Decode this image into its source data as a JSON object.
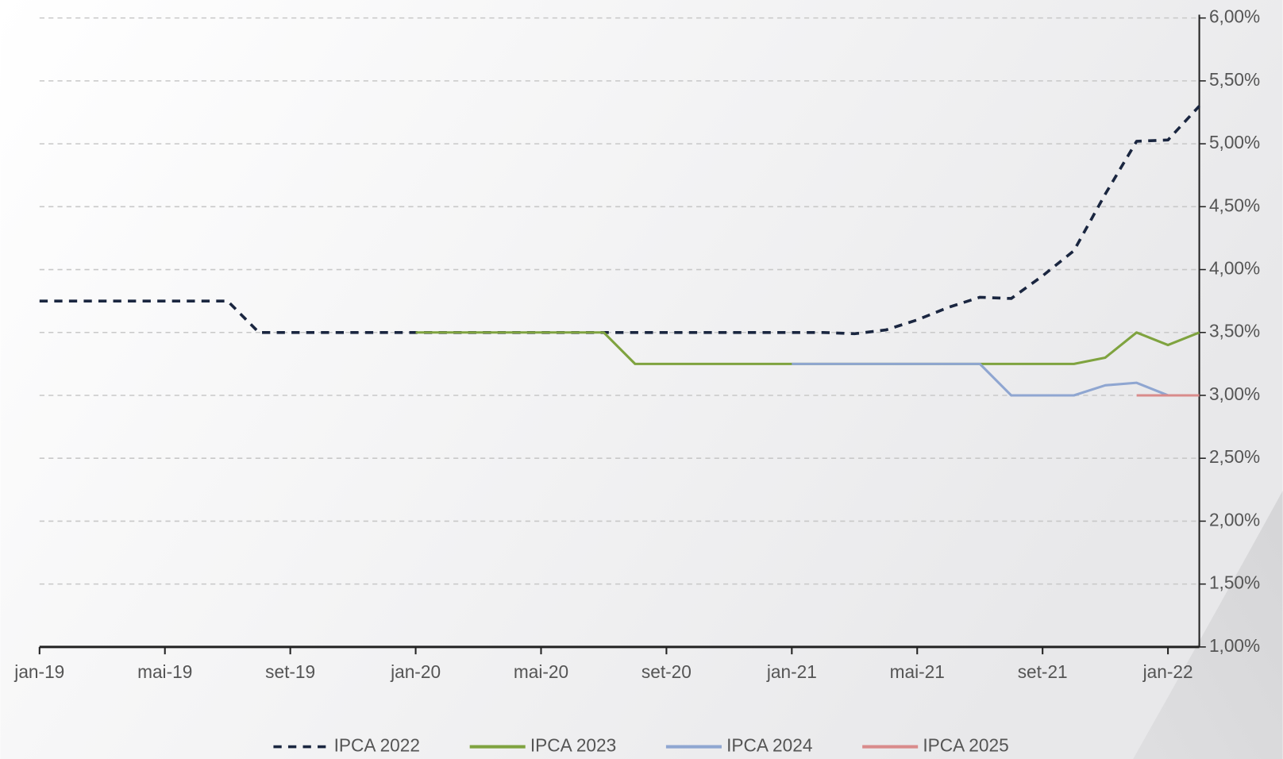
{
  "chart_data": {
    "type": "line",
    "x": [
      "2019-01",
      "2019-02",
      "2019-03",
      "2019-04",
      "2019-05",
      "2019-06",
      "2019-07",
      "2019-08",
      "2019-09",
      "2019-10",
      "2019-11",
      "2019-12",
      "2020-01",
      "2020-02",
      "2020-03",
      "2020-04",
      "2020-05",
      "2020-06",
      "2020-07",
      "2020-08",
      "2020-09",
      "2020-10",
      "2020-11",
      "2020-12",
      "2021-01",
      "2021-02",
      "2021-03",
      "2021-04",
      "2021-05",
      "2021-06",
      "2021-07",
      "2021-08",
      "2021-09",
      "2021-10",
      "2021-11",
      "2021-12",
      "2022-01",
      "2022-02"
    ],
    "series": [
      {
        "name": "IPCA 2022",
        "color": "#1a2640",
        "line_style": "dashed",
        "values": [
          3.75,
          3.75,
          3.75,
          3.75,
          3.75,
          3.75,
          3.75,
          3.5,
          3.5,
          3.5,
          3.5,
          3.5,
          3.5,
          3.5,
          3.5,
          3.5,
          3.5,
          3.5,
          3.5,
          3.5,
          3.5,
          3.5,
          3.5,
          3.5,
          3.5,
          3.5,
          3.49,
          3.52,
          3.6,
          3.7,
          3.78,
          3.77,
          3.95,
          4.15,
          4.6,
          5.02,
          5.03,
          5.3
        ]
      },
      {
        "name": "IPCA 2023",
        "color": "#7fa33f",
        "line_style": "solid",
        "values": [
          null,
          null,
          null,
          null,
          null,
          null,
          null,
          null,
          null,
          null,
          null,
          null,
          3.5,
          3.5,
          3.5,
          3.5,
          3.5,
          3.5,
          3.5,
          3.25,
          3.25,
          3.25,
          3.25,
          3.25,
          3.25,
          3.25,
          3.25,
          3.25,
          3.25,
          3.25,
          3.25,
          3.25,
          3.25,
          3.25,
          3.3,
          3.5,
          3.4,
          3.5
        ]
      },
      {
        "name": "IPCA 2024",
        "color": "#8fa6d1",
        "line_style": "solid",
        "values": [
          null,
          null,
          null,
          null,
          null,
          null,
          null,
          null,
          null,
          null,
          null,
          null,
          null,
          null,
          null,
          null,
          null,
          null,
          null,
          null,
          null,
          null,
          null,
          null,
          3.25,
          3.25,
          3.25,
          3.25,
          3.25,
          3.25,
          3.25,
          3.0,
          3.0,
          3.0,
          3.08,
          3.1,
          3.0,
          3.0
        ]
      },
      {
        "name": "IPCA 2025",
        "color": "#d98b8b",
        "line_style": "solid",
        "values": [
          null,
          null,
          null,
          null,
          null,
          null,
          null,
          null,
          null,
          null,
          null,
          null,
          null,
          null,
          null,
          null,
          null,
          null,
          null,
          null,
          null,
          null,
          null,
          null,
          null,
          null,
          null,
          null,
          null,
          null,
          null,
          null,
          null,
          null,
          null,
          3.0,
          3.0,
          3.0
        ]
      }
    ],
    "xlim": [
      "2019-01",
      "2022-02"
    ],
    "xticks": [
      {
        "value": "2019-01",
        "label": "jan-19"
      },
      {
        "value": "2019-05",
        "label": "mai-19"
      },
      {
        "value": "2019-09",
        "label": "set-19"
      },
      {
        "value": "2020-01",
        "label": "jan-20"
      },
      {
        "value": "2020-05",
        "label": "mai-20"
      },
      {
        "value": "2020-09",
        "label": "set-20"
      },
      {
        "value": "2021-01",
        "label": "jan-21"
      },
      {
        "value": "2021-05",
        "label": "mai-21"
      },
      {
        "value": "2021-09",
        "label": "set-21"
      },
      {
        "value": "2022-01",
        "label": "jan-22"
      }
    ],
    "ylim": [
      1,
      6
    ],
    "yticks": [
      {
        "value": 1,
        "label": "1,00%"
      },
      {
        "value": 1.5,
        "label": "1,50%"
      },
      {
        "value": 2,
        "label": "2,00%"
      },
      {
        "value": 2.5,
        "label": "2,50%"
      },
      {
        "value": 3,
        "label": "3,00%"
      },
      {
        "value": 3.5,
        "label": "3,50%"
      },
      {
        "value": 4,
        "label": "4,00%"
      },
      {
        "value": 4.5,
        "label": "4,50%"
      },
      {
        "value": 5,
        "label": "5,00%"
      },
      {
        "value": 5.5,
        "label": "5,50%"
      },
      {
        "value": 6,
        "label": "6,00%"
      }
    ],
    "y_axis_side": "right",
    "grid": true,
    "legend": "bottom"
  }
}
